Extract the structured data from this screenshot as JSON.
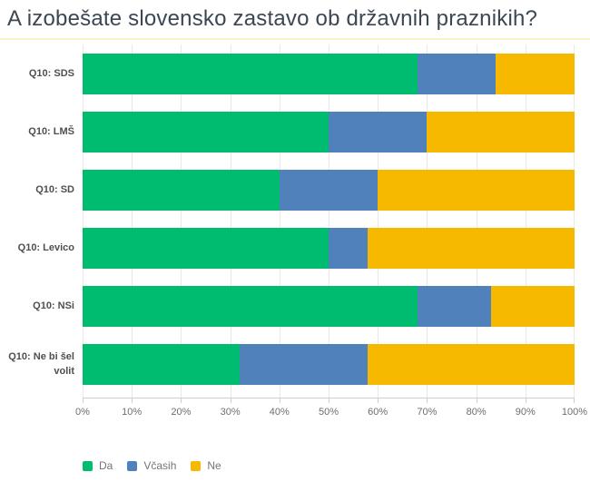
{
  "title": "A izobešate slovensko zastavo ob državnih praznikih?",
  "colors": {
    "da_green": "#00bc70",
    "vcasih_blue": "#5181bb",
    "ne_yellow": "#f6b900",
    "title_text": "#3d4752",
    "divider_yellow": "#f8f4c5",
    "gridline": "#e9e9e9",
    "axis_line": "#cfcfcf"
  },
  "chart_data": {
    "type": "bar",
    "orientation": "horizontal",
    "stacked": true,
    "title": "A izobešate slovensko zastavo ob državnih praznikih?",
    "categories": [
      "Q10: SDS",
      "Q10: LMŠ",
      "Q10: SD",
      "Q10: Levico",
      "Q10: NSi",
      "Q10: Ne bi šel volit"
    ],
    "series": [
      {
        "name": "Da",
        "slug": "da",
        "color": "#00bc70",
        "values": [
          68,
          50,
          40,
          50,
          68,
          32
        ]
      },
      {
        "name": "Včasih",
        "slug": "vcasih",
        "color": "#5181bb",
        "values": [
          16,
          20,
          20,
          8,
          15,
          26
        ]
      },
      {
        "name": "Ne",
        "slug": "ne",
        "color": "#f6b900",
        "values": [
          16,
          30,
          40,
          42,
          17,
          42
        ]
      }
    ],
    "xlim": [
      0,
      100
    ],
    "x_ticks": [
      "0%",
      "10%",
      "20%",
      "30%",
      "40%",
      "50%",
      "60%",
      "70%",
      "80%",
      "90%",
      "100%"
    ],
    "grid": true,
    "legend_position": "bottom-left",
    "xlabel": "",
    "ylabel": ""
  }
}
